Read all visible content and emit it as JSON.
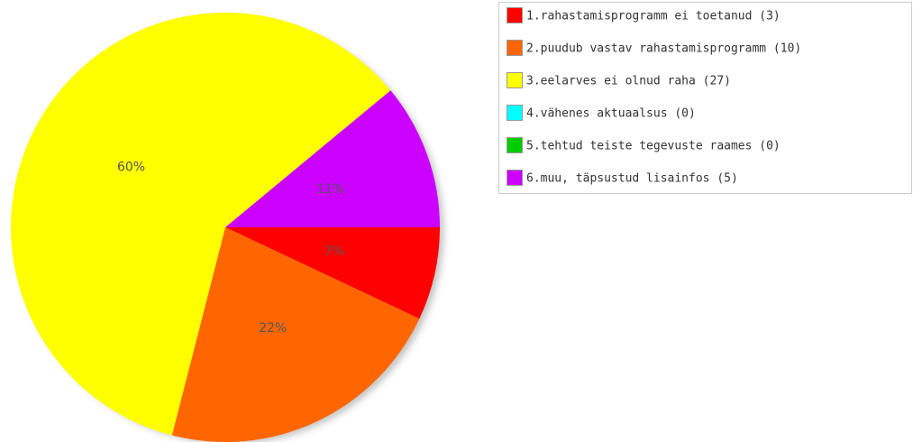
{
  "chart_data": {
    "type": "pie",
    "categories": [
      "1.rahastamisprogramm ei toetanud (3)",
      "2.puudub vastav rahastamisprogramm (10)",
      "3.eelarves ei olnud raha (27)",
      "4.vähenes aktuaalsus (0)",
      "5.tehtud teiste tegevuste raames (0)",
      "6.muu, täpsustud lisainfos (5)"
    ],
    "values": [
      7,
      22,
      60,
      0,
      0,
      11
    ],
    "value_labels": [
      "7%",
      "22%",
      "60%",
      null,
      null,
      "11%"
    ],
    "colors": [
      "#ff0000",
      "#ff6600",
      "#ffff00",
      "#00ffff",
      "#00cc00",
      "#cc00ff"
    ],
    "legend": "top-right"
  }
}
